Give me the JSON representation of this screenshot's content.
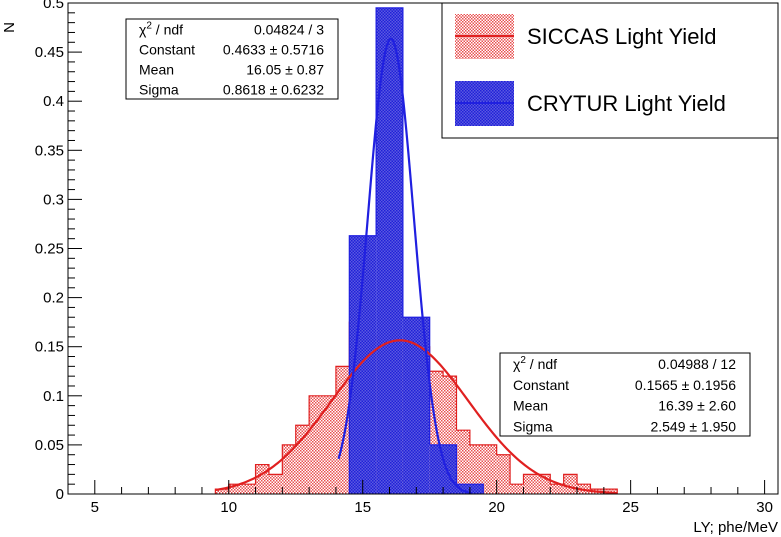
{
  "chart_data": {
    "type": "bar",
    "xlabel": "LY; phe/MeV",
    "ylabel": "N",
    "xlim": [
      4,
      30.5
    ],
    "ylim": [
      0,
      0.5
    ],
    "x_ticks": [
      5,
      10,
      15,
      20,
      25,
      30
    ],
    "y_ticks": [
      0,
      0.05,
      0.1,
      0.15,
      0.2,
      0.25,
      0.3,
      0.35,
      0.4,
      0.45,
      0.5
    ],
    "x_tick_labels": [
      "5",
      "10",
      "15",
      "20",
      "25",
      "30"
    ],
    "y_tick_labels": [
      "0",
      "0.05",
      "0.1",
      "0.15",
      "0.2",
      "0.25",
      "0.3",
      "0.35",
      "0.4",
      "0.45",
      "0.5"
    ],
    "legend_placement": "top-right",
    "series": [
      {
        "name": "SICCAS Light Yield",
        "color": "#e02020",
        "fill": "hatched-red",
        "bin_width": 0.5,
        "bin_starts": [
          9.5,
          10.0,
          10.5,
          11.0,
          11.5,
          12.0,
          12.5,
          13.0,
          13.5,
          14.0,
          14.5,
          15.0,
          15.5,
          16.0,
          16.5,
          17.0,
          17.5,
          18.0,
          18.5,
          19.0,
          19.5,
          20.0,
          20.5,
          21.0,
          21.5,
          22.0,
          22.5,
          23.0,
          23.5,
          24.0
        ],
        "values": [
          0.005,
          0.01,
          0.01,
          0.03,
          0.02,
          0.05,
          0.07,
          0.1,
          0.1,
          0.13,
          0.175,
          0.16,
          0.16,
          0.15,
          0.15,
          0.15,
          0.125,
          0.12,
          0.065,
          0.05,
          0.05,
          0.04,
          0.01,
          0.02,
          0.02,
          0.01,
          0.02,
          0.01,
          0.005,
          0.005
        ],
        "fit": {
          "type": "gaussian",
          "constant": 0.1565,
          "mean": 16.39,
          "sigma": 2.549,
          "x_range": [
            9.5,
            24.5
          ]
        },
        "stats": [
          {
            "label": "χ² / ndf",
            "value": "0.04988 / 12"
          },
          {
            "label": "Constant",
            "value": "0.1565 ± 0.1956"
          },
          {
            "label": "Mean",
            "value": "16.39 ± 2.60"
          },
          {
            "label": "Sigma",
            "value": "2.549 ± 1.950"
          }
        ]
      },
      {
        "name": "CRYTUR Light Yield",
        "color": "#2020e0",
        "fill": "hatched-blue",
        "bin_width": 1.0,
        "bin_starts": [
          14.5,
          15.5,
          16.5,
          17.5,
          18.5
        ],
        "values": [
          0.263,
          0.495,
          0.18,
          0.05,
          0.01
        ],
        "fit": {
          "type": "gaussian",
          "constant": 0.4633,
          "mean": 16.05,
          "sigma": 0.8618,
          "x_range": [
            14.1,
            19.1
          ]
        },
        "stats": [
          {
            "label": "χ² / ndf",
            "value": "0.04824 / 3"
          },
          {
            "label": "Constant",
            "value": "0.4633 ± 0.5716"
          },
          {
            "label": "Mean",
            "value": "16.05 ± 0.87"
          },
          {
            "label": "Sigma",
            "value": "0.8618 ± 0.6232"
          }
        ]
      }
    ]
  }
}
